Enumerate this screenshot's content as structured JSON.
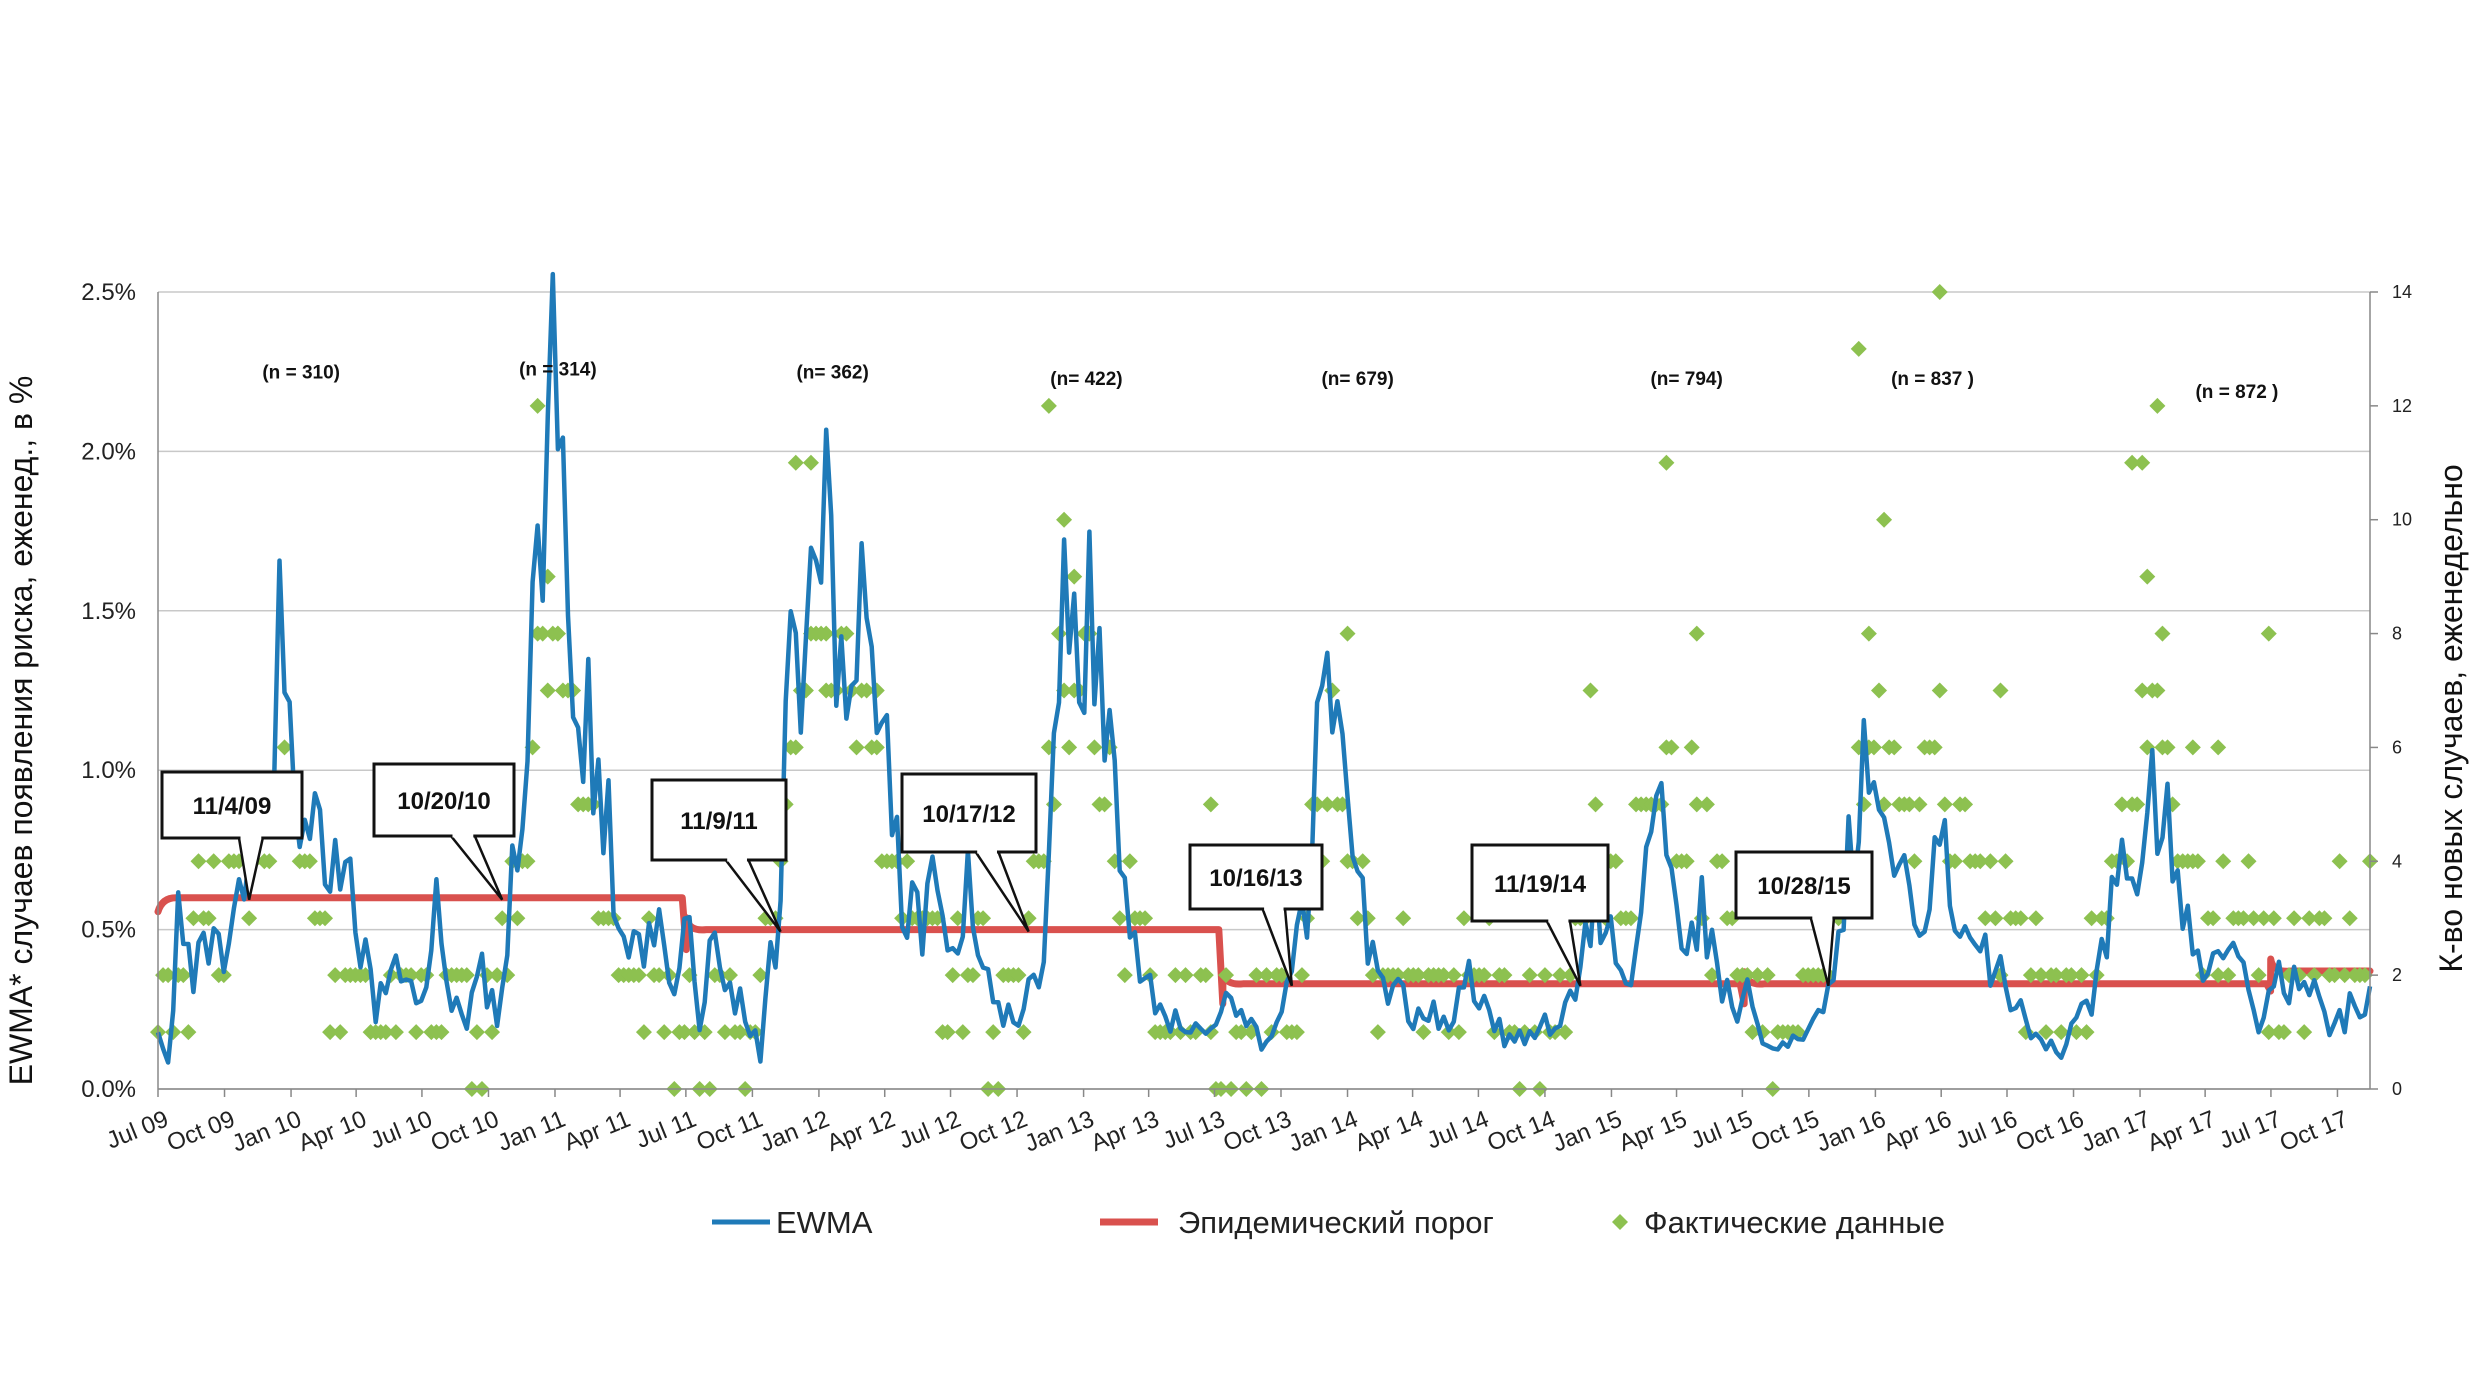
{
  "chart_data": {
    "type": "line",
    "y_left": {
      "label": "EWMA* случаев появления риска, еженед., в %",
      "range": [
        0,
        2.5
      ],
      "ticks": [
        "0.0%",
        "0.5%",
        "1.0%",
        "1.5%",
        "2.0%",
        "2.5%"
      ]
    },
    "y_right": {
      "label": "К-во новых случаев, еженедельно",
      "range": [
        0,
        14
      ],
      "ticks": [
        "0",
        "2",
        "4",
        "6",
        "8",
        "10",
        "12",
        "14"
      ]
    },
    "x": {
      "start": "2009-07-01",
      "end": "2017-11-15",
      "tick_labels": [
        "Jul 09",
        "Oct 09",
        "Jan 10",
        "Apr 10",
        "Jul 10",
        "Oct 10",
        "Jan 11",
        "Apr 11",
        "Jul 11",
        "Oct 11",
        "Jan 12",
        "Apr 12",
        "Jul 12",
        "Oct 12",
        "Jan 13",
        "Apr 13",
        "Jul 13",
        "Oct 13",
        "Jan 14",
        "Apr 14",
        "Jul 14",
        "Oct 14",
        "Jan 15",
        "Apr 15",
        "Jul 15",
        "Oct 15",
        "Jan 16",
        "Apr 16",
        "Jul 16",
        "Oct 16",
        "Jan 17",
        "Apr 17",
        "Jul 17",
        "Oct 17"
      ]
    },
    "grid": true,
    "legend": {
      "placement": "bottom",
      "entries": [
        {
          "name": "EWMA",
          "color": "#1F7AB8",
          "marker": "line"
        },
        {
          "name": "Эпидемический порог",
          "color": "#D9514E",
          "marker": "line"
        },
        {
          "name": "Фактические данные",
          "color": "#8DC150",
          "marker": "diamond"
        }
      ]
    },
    "threshold": {
      "name": "Эпидемический порог",
      "color": "#D9514E",
      "segments": [
        {
          "from": "2009-07-01",
          "to": "2011-06-26",
          "value": 0.6
        },
        {
          "from": "2011-07-10",
          "to": "2013-07-07",
          "value": 0.5
        },
        {
          "from": "2013-07-21",
          "to": "2015-06-28",
          "value": 0.33
        },
        {
          "from": "2015-07-12",
          "to": "2017-06-25",
          "value": 0.33
        },
        {
          "from": "2017-07-09",
          "to": "2017-11-15",
          "value": 0.37
        }
      ]
    },
    "ewma_keypoints": [
      [
        "2009-07-01",
        0.17
      ],
      [
        "2009-07-15",
        0.1
      ],
      [
        "2009-07-29",
        0.52
      ],
      [
        "2009-08-19",
        0.32
      ],
      [
        "2009-09-09",
        0.5
      ],
      [
        "2009-09-30",
        0.35
      ],
      [
        "2009-10-21",
        0.55
      ],
      [
        "2009-11-11",
        0.65
      ],
      [
        "2009-12-02",
        1.0
      ],
      [
        "2009-12-16",
        1.38
      ],
      [
        "2009-12-30",
        1.1
      ],
      [
        "2010-01-20",
        0.85
      ],
      [
        "2010-02-10",
        0.72
      ],
      [
        "2010-03-03",
        0.7
      ],
      [
        "2010-03-17",
        0.84
      ],
      [
        "2010-04-07",
        0.45
      ],
      [
        "2010-04-28",
        0.25
      ],
      [
        "2010-05-12",
        0.3
      ],
      [
        "2010-05-26",
        0.46
      ],
      [
        "2010-06-16",
        0.28
      ],
      [
        "2010-07-07",
        0.27
      ],
      [
        "2010-07-21",
        0.58
      ],
      [
        "2010-08-11",
        0.3
      ],
      [
        "2010-09-01",
        0.22
      ],
      [
        "2010-09-22",
        0.35
      ],
      [
        "2010-10-13",
        0.22
      ],
      [
        "2010-11-03",
        0.7
      ],
      [
        "2010-11-17",
        0.72
      ],
      [
        "2010-12-01",
        1.65
      ],
      [
        "2010-12-15",
        1.7
      ],
      [
        "2010-12-29",
        2.13
      ],
      [
        "2011-01-19",
        1.55
      ],
      [
        "2011-02-09",
        1.15
      ],
      [
        "2011-03-02",
        1.05
      ],
      [
        "2011-03-23",
        0.7
      ],
      [
        "2011-04-13",
        0.4
      ],
      [
        "2011-05-04",
        0.48
      ],
      [
        "2011-05-25",
        0.5
      ],
      [
        "2011-06-15",
        0.3
      ],
      [
        "2011-07-06",
        0.55
      ],
      [
        "2011-07-20",
        0.22
      ],
      [
        "2011-08-10",
        0.47
      ],
      [
        "2011-08-31",
        0.3
      ],
      [
        "2011-09-21",
        0.25
      ],
      [
        "2011-10-12",
        0.1
      ],
      [
        "2011-10-26",
        0.4
      ],
      [
        "2011-11-09",
        0.55
      ],
      [
        "2011-11-23",
        1.5
      ],
      [
        "2011-12-07",
        1.38
      ],
      [
        "2011-12-21",
        1.55
      ],
      [
        "2012-01-04",
        1.82
      ],
      [
        "2012-01-18",
        1.65
      ],
      [
        "2012-02-08",
        1.2
      ],
      [
        "2012-02-29",
        1.45
      ],
      [
        "2012-03-21",
        1.15
      ],
      [
        "2012-04-11",
        0.9
      ],
      [
        "2012-05-02",
        0.53
      ],
      [
        "2012-05-23",
        0.53
      ],
      [
        "2012-06-13",
        0.72
      ],
      [
        "2012-07-04",
        0.4
      ],
      [
        "2012-07-25",
        0.62
      ],
      [
        "2012-08-15",
        0.42
      ],
      [
        "2012-09-05",
        0.25
      ],
      [
        "2012-09-26",
        0.2
      ],
      [
        "2012-10-17",
        0.3
      ],
      [
        "2012-11-07",
        0.45
      ],
      [
        "2012-11-28",
        1.3
      ],
      [
        "2012-12-12",
        1.63
      ],
      [
        "2012-12-26",
        1.4
      ],
      [
        "2013-01-16",
        1.5
      ],
      [
        "2013-02-06",
        1.0
      ],
      [
        "2013-02-27",
        0.6
      ],
      [
        "2013-03-20",
        0.4
      ],
      [
        "2013-04-10",
        0.25
      ],
      [
        "2013-05-01",
        0.22
      ],
      [
        "2013-05-22",
        0.2
      ],
      [
        "2013-06-12",
        0.18
      ],
      [
        "2013-07-03",
        0.24
      ],
      [
        "2013-07-24",
        0.3
      ],
      [
        "2013-08-14",
        0.2
      ],
      [
        "2013-09-04",
        0.15
      ],
      [
        "2013-09-25",
        0.2
      ],
      [
        "2013-10-16",
        0.35
      ],
      [
        "2013-11-06",
        0.6
      ],
      [
        "2013-11-27",
        1.22
      ],
      [
        "2013-12-18",
        1.05
      ],
      [
        "2014-01-08",
        0.8
      ],
      [
        "2014-01-29",
        0.45
      ],
      [
        "2014-02-19",
        0.3
      ],
      [
        "2014-03-12",
        0.32
      ],
      [
        "2014-04-02",
        0.2
      ],
      [
        "2014-04-23",
        0.25
      ],
      [
        "2014-05-14",
        0.2
      ],
      [
        "2014-06-04",
        0.3
      ],
      [
        "2014-06-25",
        0.35
      ],
      [
        "2014-07-16",
        0.22
      ],
      [
        "2014-08-06",
        0.17
      ],
      [
        "2014-08-27",
        0.15
      ],
      [
        "2014-09-17",
        0.2
      ],
      [
        "2014-10-08",
        0.2
      ],
      [
        "2014-10-29",
        0.25
      ],
      [
        "2014-11-19",
        0.4
      ],
      [
        "2014-12-10",
        0.6
      ],
      [
        "2014-12-31",
        0.5
      ],
      [
        "2015-01-21",
        0.35
      ],
      [
        "2015-02-11",
        0.55
      ],
      [
        "2015-03-04",
        0.92
      ],
      [
        "2015-03-25",
        0.6
      ],
      [
        "2015-04-15",
        0.45
      ],
      [
        "2015-05-06",
        0.55
      ],
      [
        "2015-05-27",
        0.35
      ],
      [
        "2015-06-17",
        0.25
      ],
      [
        "2015-07-08",
        0.3
      ],
      [
        "2015-07-29",
        0.15
      ],
      [
        "2015-08-19",
        0.12
      ],
      [
        "2015-09-09",
        0.15
      ],
      [
        "2015-09-30",
        0.2
      ],
      [
        "2015-10-21",
        0.25
      ],
      [
        "2015-11-11",
        0.5
      ],
      [
        "2015-12-02",
        0.8
      ],
      [
        "2015-12-16",
        1.05
      ],
      [
        "2016-01-06",
        0.8
      ],
      [
        "2016-01-27",
        0.7
      ],
      [
        "2016-02-17",
        0.65
      ],
      [
        "2016-03-09",
        0.55
      ],
      [
        "2016-03-30",
        0.88
      ],
      [
        "2016-04-20",
        0.5
      ],
      [
        "2016-05-11",
        0.55
      ],
      [
        "2016-06-01",
        0.45
      ],
      [
        "2016-06-22",
        0.35
      ],
      [
        "2016-07-13",
        0.28
      ],
      [
        "2016-08-03",
        0.2
      ],
      [
        "2016-08-24",
        0.15
      ],
      [
        "2016-09-14",
        0.12
      ],
      [
        "2016-10-05",
        0.2
      ],
      [
        "2016-10-26",
        0.28
      ],
      [
        "2016-11-16",
        0.45
      ],
      [
        "2016-12-07",
        0.85
      ],
      [
        "2016-12-28",
        0.78
      ],
      [
        "2017-01-18",
        0.92
      ],
      [
        "2017-02-08",
        0.8
      ],
      [
        "2017-03-01",
        0.55
      ],
      [
        "2017-03-22",
        0.4
      ],
      [
        "2017-04-12",
        0.48
      ],
      [
        "2017-05-03",
        0.45
      ],
      [
        "2017-05-24",
        0.35
      ],
      [
        "2017-06-14",
        0.2
      ],
      [
        "2017-07-05",
        0.35
      ],
      [
        "2017-07-26",
        0.3
      ],
      [
        "2017-08-16",
        0.35
      ],
      [
        "2017-09-06",
        0.25
      ],
      [
        "2017-09-27",
        0.18
      ],
      [
        "2017-10-18",
        0.25
      ],
      [
        "2017-11-15",
        0.3
      ]
    ],
    "weekly_cases_keypoints": [
      [
        "2009-07-01",
        1
      ],
      [
        "2009-08-05",
        2
      ],
      [
        "2009-09-16",
        3
      ],
      [
        "2009-10-28",
        4
      ],
      [
        "2009-12-09",
        5
      ],
      [
        "2010-01-13",
        4
      ],
      [
        "2010-02-24",
        2
      ],
      [
        "2010-04-21",
        1
      ],
      [
        "2010-06-09",
        2
      ],
      [
        "2010-07-28",
        1
      ],
      [
        "2010-09-08",
        1
      ],
      [
        "2010-10-20",
        2
      ],
      [
        "2010-11-24",
        5
      ],
      [
        "2010-12-29",
        9
      ],
      [
        "2011-02-02",
        5
      ],
      [
        "2011-03-16",
        3
      ],
      [
        "2011-05-11",
        2
      ],
      [
        "2011-06-29",
        1
      ],
      [
        "2011-08-17",
        1
      ],
      [
        "2011-10-05",
        1
      ],
      [
        "2011-11-16",
        5
      ],
      [
        "2011-12-21",
        8
      ],
      [
        "2012-01-25",
        7
      ],
      [
        "2012-03-07",
        6
      ],
      [
        "2012-04-25",
        4
      ],
      [
        "2012-06-13",
        2
      ],
      [
        "2012-08-01",
        2
      ],
      [
        "2012-09-12",
        1
      ],
      [
        "2012-10-24",
        3
      ],
      [
        "2012-11-28",
        7
      ],
      [
        "2013-01-02",
        7
      ],
      [
        "2013-02-13",
        4
      ],
      [
        "2013-03-27",
        2
      ],
      [
        "2013-05-08",
        1
      ],
      [
        "2013-06-19",
        1
      ],
      [
        "2013-08-07",
        1
      ],
      [
        "2013-09-25",
        1
      ],
      [
        "2013-11-06",
        3
      ],
      [
        "2013-12-11",
        6
      ],
      [
        "2014-01-22",
        3
      ],
      [
        "2014-03-05",
        2
      ],
      [
        "2014-04-23",
        1
      ],
      [
        "2014-06-11",
        2
      ],
      [
        "2014-07-30",
        2
      ],
      [
        "2014-09-17",
        1
      ],
      [
        "2014-10-29",
        2
      ],
      [
        "2014-12-10",
        4
      ],
      [
        "2015-01-21",
        4
      ],
      [
        "2015-03-04",
        5
      ],
      [
        "2015-04-15",
        5
      ],
      [
        "2015-05-27",
        3
      ],
      [
        "2015-07-08",
        2
      ],
      [
        "2015-08-26",
        1
      ],
      [
        "2015-10-14",
        2
      ],
      [
        "2015-11-25",
        4
      ],
      [
        "2015-12-30",
        6
      ],
      [
        "2016-02-10",
        5
      ],
      [
        "2016-03-23",
        6
      ],
      [
        "2016-05-04",
        4
      ],
      [
        "2016-06-15",
        3
      ],
      [
        "2016-07-27",
        2
      ],
      [
        "2016-09-07",
        1
      ],
      [
        "2016-10-19",
        2
      ],
      [
        "2016-11-30",
        4
      ],
      [
        "2017-01-04",
        7
      ],
      [
        "2017-02-15",
        5
      ],
      [
        "2017-03-29",
        3
      ],
      [
        "2017-05-10",
        3
      ],
      [
        "2017-06-21",
        2
      ],
      [
        "2017-08-02",
        2
      ],
      [
        "2017-09-13",
        2
      ],
      [
        "2017-10-25",
        3
      ],
      [
        "2017-11-15",
        3
      ]
    ],
    "weekly_cases_extremes": [
      [
        "2009-12-23",
        6
      ],
      [
        "2010-12-08",
        12
      ],
      [
        "2010-12-22",
        9
      ],
      [
        "2011-01-05",
        8
      ],
      [
        "2011-11-30",
        11
      ],
      [
        "2011-12-21",
        11
      ],
      [
        "2012-01-11",
        7
      ],
      [
        "2012-03-21",
        7
      ],
      [
        "2012-11-14",
        12
      ],
      [
        "2012-12-05",
        10
      ],
      [
        "2012-12-19",
        9
      ],
      [
        "2013-06-26",
        5
      ],
      [
        "2014-01-01",
        8
      ],
      [
        "2014-12-03",
        7
      ],
      [
        "2015-03-18",
        11
      ],
      [
        "2015-04-29",
        8
      ],
      [
        "2015-12-09",
        13
      ],
      [
        "2015-12-23",
        8
      ],
      [
        "2016-01-13",
        10
      ],
      [
        "2016-03-30",
        14
      ],
      [
        "2016-06-22",
        7
      ],
      [
        "2016-12-21",
        11
      ],
      [
        "2017-01-04",
        11
      ],
      [
        "2017-01-25",
        12
      ],
      [
        "2017-01-11",
        9
      ],
      [
        "2017-02-01",
        8
      ],
      [
        "2017-06-28",
        8
      ],
      [
        "2017-03-15",
        6
      ],
      [
        "2017-04-19",
        6
      ]
    ],
    "season_labels": [
      {
        "text": "(n =  310)",
        "date": "2010-01-15",
        "y_pct": 2.25
      },
      {
        "text": "(n = 314)",
        "date": "2011-01-05",
        "y_pct": 2.26
      },
      {
        "text": "(n=   362)",
        "date": "2012-01-20",
        "y_pct": 2.25
      },
      {
        "text": "(n=  422)",
        "date": "2013-01-05",
        "y_pct": 2.23
      },
      {
        "text": "(n= 679)",
        "date": "2014-01-15",
        "y_pct": 2.23
      },
      {
        "text": "(n=   794)",
        "date": "2015-04-15",
        "y_pct": 2.23
      },
      {
        "text": "(n = 837 )",
        "date": "2016-03-20",
        "y_pct": 2.23
      },
      {
        "text": "(n =  872 )",
        "date": "2017-05-15",
        "y_pct": 2.19
      }
    ],
    "annotations": [
      {
        "text": "11/4/09",
        "point_date": "2009-11-04",
        "point_value": 0.6
      },
      {
        "text": "10/20/10",
        "point_date": "2010-10-20",
        "point_value": 0.6
      },
      {
        "text": "11/9/11",
        "point_date": "2011-11-09",
        "point_value": 0.5
      },
      {
        "text": "10/17/12",
        "point_date": "2012-10-17",
        "point_value": 0.5
      },
      {
        "text": "10/16/13",
        "point_date": "2013-10-16",
        "point_value": 0.33
      },
      {
        "text": "11/19/14",
        "point_date": "2014-11-19",
        "point_value": 0.33
      },
      {
        "text": "10/28/15",
        "point_date": "2015-10-28",
        "point_value": 0.33
      }
    ]
  }
}
